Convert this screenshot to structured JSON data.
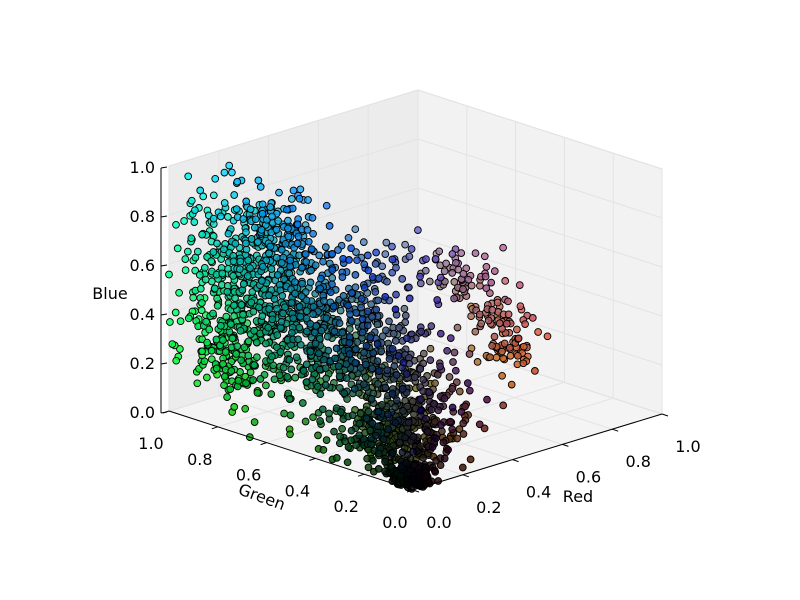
{
  "chart_data": {
    "type": "scatter",
    "projection": "3d",
    "title": "",
    "xlabel": "Red",
    "ylabel": "Green",
    "zlabel": "Blue",
    "xlim": [
      0.0,
      1.0
    ],
    "ylim": [
      0.0,
      1.0
    ],
    "zlim": [
      0.0,
      1.0
    ],
    "x_ticks": [
      "0.0",
      "0.2",
      "0.4",
      "0.6",
      "0.8",
      "1.0"
    ],
    "y_ticks": [
      "0.0",
      "0.2",
      "0.4",
      "0.6",
      "0.8",
      "1.0"
    ],
    "z_ticks": [
      "0.0",
      "0.2",
      "0.4",
      "0.6",
      "0.8",
      "1.0"
    ],
    "grid": true,
    "legend": "none",
    "point_color_rule": "each point colored by its own (R,G,B) value",
    "marker_edge_color": "#000000",
    "clusters": [
      {
        "name": "",
        "center": [
          0.06,
          0.72,
          0.62
        ],
        "spread": [
          0.04,
          0.16,
          0.16
        ],
        "count": 360
      },
      {
        "name": "",
        "center": [
          0.1,
          0.68,
          0.78
        ],
        "spread": [
          0.06,
          0.12,
          0.09
        ],
        "count": 160
      },
      {
        "name": "",
        "center": [
          0.05,
          0.55,
          0.45
        ],
        "spread": [
          0.04,
          0.18,
          0.18
        ],
        "count": 280
      },
      {
        "name": "",
        "center": [
          0.06,
          0.82,
          0.28
        ],
        "spread": [
          0.04,
          0.08,
          0.1
        ],
        "count": 140
      },
      {
        "name": "",
        "center": [
          0.15,
          0.45,
          0.45
        ],
        "spread": [
          0.08,
          0.12,
          0.13
        ],
        "count": 260
      },
      {
        "name": "",
        "center": [
          0.22,
          0.32,
          0.28
        ],
        "spread": [
          0.1,
          0.12,
          0.12
        ],
        "count": 300
      },
      {
        "name": "",
        "center": [
          0.12,
          0.18,
          0.12
        ],
        "spread": [
          0.08,
          0.08,
          0.07
        ],
        "count": 240
      },
      {
        "name": "",
        "center": [
          0.04,
          0.05,
          0.03
        ],
        "spread": [
          0.03,
          0.03,
          0.02
        ],
        "count": 220
      },
      {
        "name": "",
        "center": [
          0.28,
          0.28,
          0.1
        ],
        "spread": [
          0.08,
          0.06,
          0.05
        ],
        "count": 90
      },
      {
        "name": "",
        "center": [
          0.3,
          0.4,
          0.7
        ],
        "spread": [
          0.1,
          0.08,
          0.05
        ],
        "count": 40
      },
      {
        "name": "",
        "center": [
          0.62,
          0.44,
          0.52
        ],
        "spread": [
          0.05,
          0.05,
          0.06
        ],
        "count": 55
      },
      {
        "name": "",
        "center": [
          0.72,
          0.38,
          0.35
        ],
        "spread": [
          0.05,
          0.05,
          0.05
        ],
        "count": 55
      },
      {
        "name": "",
        "center": [
          0.78,
          0.4,
          0.2
        ],
        "spread": [
          0.04,
          0.04,
          0.04
        ],
        "count": 45
      }
    ]
  }
}
